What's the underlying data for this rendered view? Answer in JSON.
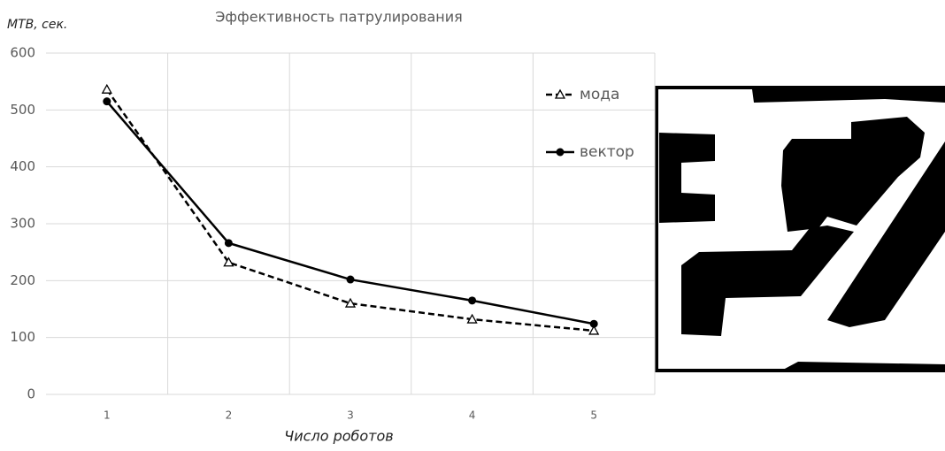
{
  "chart_data": {
    "type": "line",
    "title": "Эффективность патрулирования",
    "y_label": "МТВ, сек.",
    "x_label": "Число роботов",
    "categories": [
      "1",
      "2",
      "3",
      "4",
      "5"
    ],
    "series": [
      {
        "name": "мода",
        "color": "#000000",
        "line_style": "dashed",
        "marker": "triangle",
        "values": [
          536,
          232,
          160,
          132,
          112
        ]
      },
      {
        "name": "вектор",
        "color": "#000000",
        "line_style": "solid",
        "marker": "circle",
        "values": [
          515,
          266,
          202,
          165,
          124
        ]
      }
    ],
    "ylim": [
      0,
      600
    ],
    "yticks": [
      0,
      100,
      200,
      300,
      400,
      500,
      600
    ],
    "grid": true,
    "legend": "right"
  }
}
